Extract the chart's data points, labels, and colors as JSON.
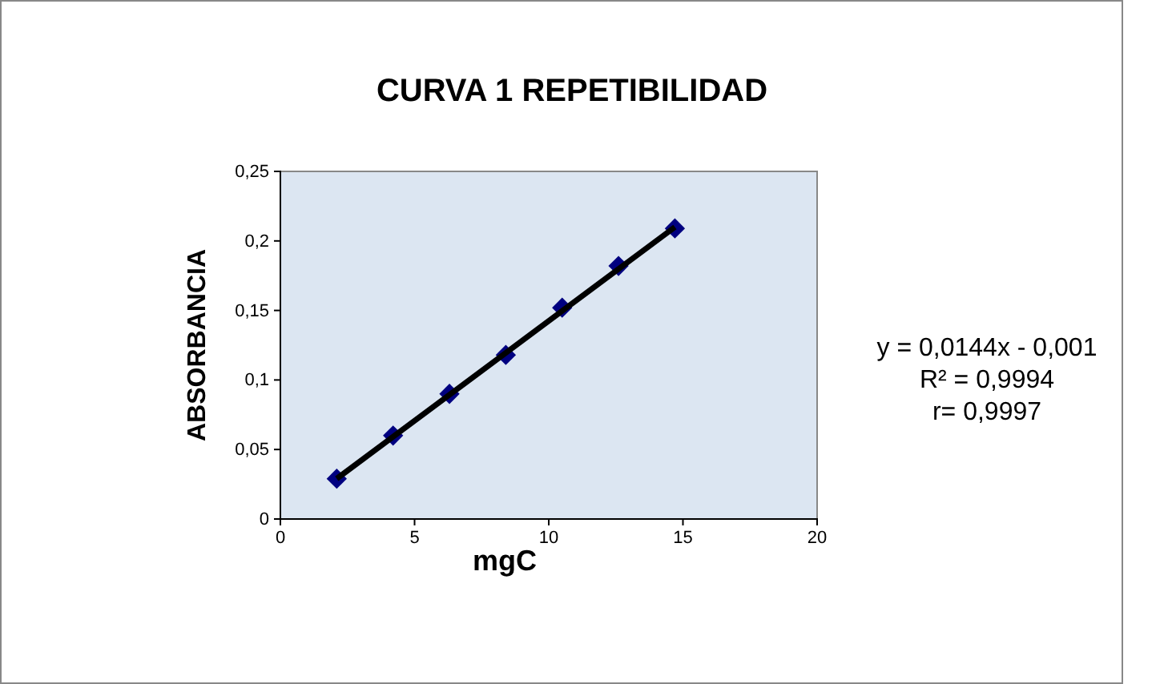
{
  "chart_data": {
    "type": "scatter",
    "title": "CURVA 1 REPETIBILIDAD",
    "xlabel": "mgC",
    "ylabel": "ABSORBANCIA",
    "xlim": [
      0,
      20
    ],
    "xticks": [
      0,
      5,
      10,
      15,
      20
    ],
    "ylim": [
      0,
      0.25
    ],
    "yticks": [
      {
        "value": 0,
        "label": "0"
      },
      {
        "value": 0.05,
        "label": "0,05"
      },
      {
        "value": 0.1,
        "label": "0,1"
      },
      {
        "value": 0.15,
        "label": "0,15"
      },
      {
        "value": 0.2,
        "label": "0,2"
      },
      {
        "value": 0.25,
        "label": "0,25"
      }
    ],
    "grid": false,
    "series": [
      {
        "marker": "diamond",
        "color": "#000080",
        "x": [
          2.1,
          4.2,
          6.3,
          8.4,
          10.5,
          12.6,
          14.7
        ],
        "values": [
          0.029,
          0.06,
          0.09,
          0.118,
          0.152,
          0.182,
          0.209
        ]
      },
      {
        "type": "line",
        "color": "#000000",
        "x": [
          2.1,
          14.7
        ],
        "values": [
          0.029,
          0.21
        ]
      }
    ],
    "annotations": [
      "y = 0,0144x - 0,001",
      "R² = 0,9994",
      "r= 0,9997"
    ]
  }
}
